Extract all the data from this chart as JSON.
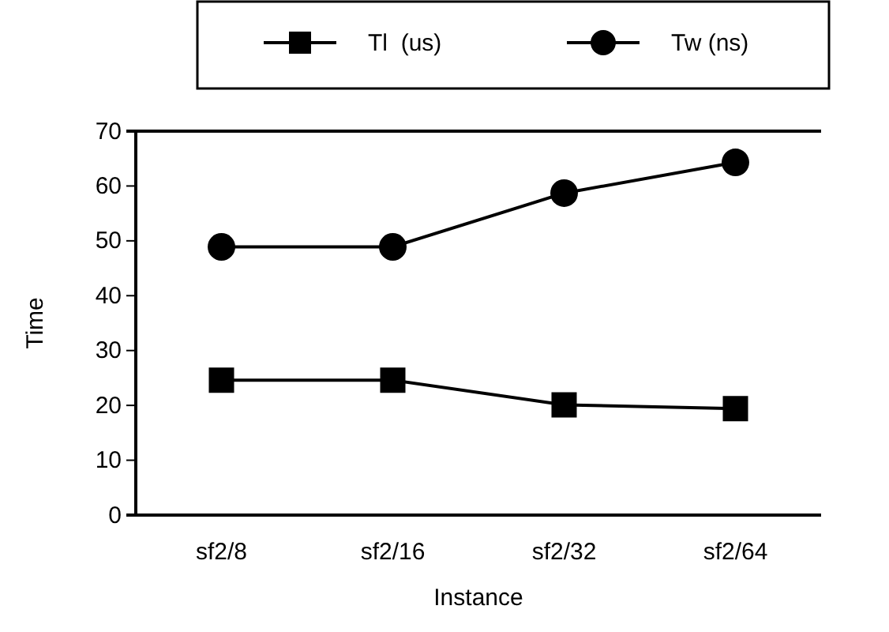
{
  "chart_data": {
    "type": "line",
    "xlabel": "Instance",
    "ylabel": "Time",
    "categories": [
      "sf2/8",
      "sf2/16",
      "sf2/32",
      "sf2/64"
    ],
    "series": [
      {
        "name": "Tl  (us)",
        "color": "#000000",
        "marker": "square",
        "values": [
          24.6,
          24.6,
          20.1,
          19.4
        ]
      },
      {
        "name": "Tw (ns)",
        "color": "#000000",
        "marker": "circle",
        "values": [
          48.9,
          48.9,
          58.7,
          64.3
        ]
      }
    ],
    "ylim": [
      0,
      70
    ],
    "yticks": [
      0,
      10,
      20,
      30,
      40,
      50,
      60,
      70
    ],
    "grid": false,
    "legend": "top",
    "line_style": "solid"
  }
}
